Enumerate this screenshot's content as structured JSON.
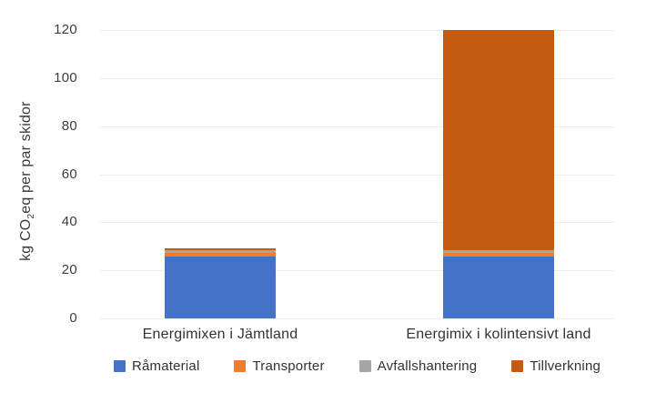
{
  "chart_data": {
    "type": "bar",
    "stacked": true,
    "title": "",
    "ylabel": "kg CO₂eq per par skidor",
    "ylabel_parts": {
      "prefix": "kg CO",
      "sub": "2",
      "suffix": "eq per par skidor"
    },
    "xlabel": "",
    "ylim": [
      0,
      120
    ],
    "yticks": [
      0,
      20,
      40,
      60,
      80,
      100,
      120
    ],
    "grid": true,
    "legend_position": "bottom",
    "categories": [
      "Energimixen i Jämtland",
      "Energimix i kolintensivt land"
    ],
    "series": [
      {
        "name": "Råmaterial",
        "color": "#4472C4",
        "values": [
          25.8,
          25.8
        ]
      },
      {
        "name": "Transporter",
        "color": "#ED7D31",
        "values": [
          1.4,
          1.4
        ]
      },
      {
        "name": "Avfallshantering",
        "color": "#A5A5A5",
        "values": [
          1.1,
          1.1
        ]
      },
      {
        "name": "Tillverkning",
        "color": "#C55A11",
        "values": [
          0.9,
          91.7
        ]
      }
    ],
    "totals": [
      29.2,
      120
    ]
  },
  "colors": {
    "background": "#ffffff",
    "gridline": "#ededed",
    "axis_text": "#3d3d3d",
    "label_text": "#333333"
  }
}
